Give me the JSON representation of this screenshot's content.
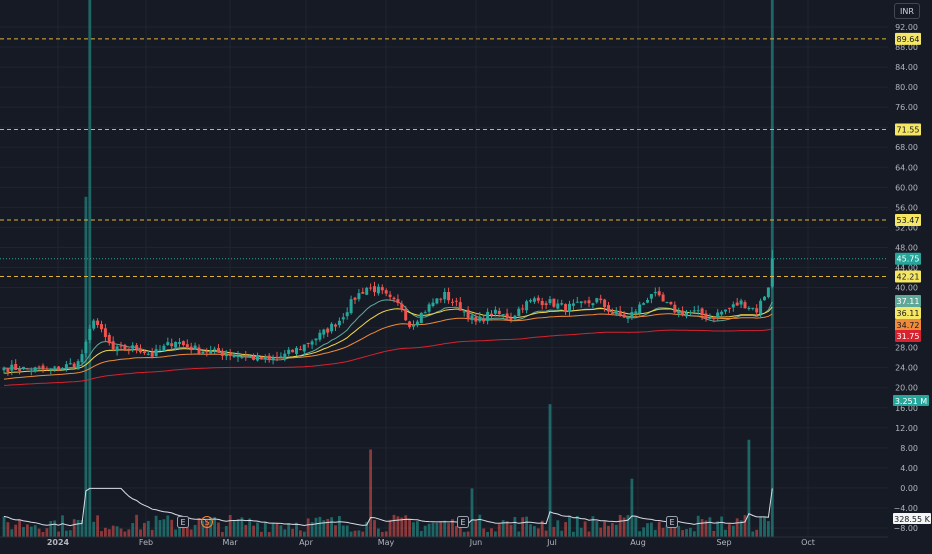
{
  "currency": "INR",
  "chart_data": {
    "type": "candlestick",
    "price_axis": {
      "ticks": [
        "92.00",
        "88.00",
        "84.00",
        "80.00",
        "76.00",
        "72.00",
        "68.00",
        "64.00",
        "60.00",
        "56.00",
        "52.00",
        "48.00",
        "44.00",
        "40.00",
        "36.00",
        "32.00",
        "28.00",
        "24.00",
        "20.00",
        "16.00",
        "12.00",
        "8.00",
        "4.00",
        "0.00",
        "−4.00",
        "−8.00"
      ],
      "tick_values": [
        92,
        88,
        84,
        80,
        76,
        72,
        68,
        64,
        60,
        56,
        52,
        48,
        44,
        40,
        36,
        32,
        28,
        24,
        20,
        16,
        12,
        8,
        4,
        0,
        -4,
        -8
      ],
      "range": [
        -8,
        92
      ]
    },
    "time_axis": {
      "labels": [
        "2024",
        "Feb",
        "Mar",
        "Apr",
        "May",
        "Jun",
        "Jul",
        "Aug",
        "Sep",
        "Oct"
      ]
    },
    "levels": [
      {
        "value": 89.64,
        "label": "89.64"
      },
      {
        "value": 71.55,
        "label": "71.55"
      },
      {
        "value": 53.47,
        "label": "53.47"
      },
      {
        "value": 42.21,
        "label": "42.21"
      }
    ],
    "last_price": {
      "value": 45.75,
      "label": "45.75",
      "color": "#26a69a"
    },
    "moving_averages": [
      {
        "last": 37.11,
        "label": "37.11",
        "color": "#5fa899"
      },
      {
        "last": 36.11,
        "label": "36.11",
        "color": "#f2d74b"
      },
      {
        "last": 34.72,
        "label": "34.72",
        "color": "#f08a38"
      },
      {
        "last": 31.75,
        "label": "31.75",
        "color": "#d6232f"
      }
    ],
    "volume": {
      "last": "3.251 M",
      "average_last": "328.55 K",
      "color_up": "#26a69a",
      "color_down": "#ef5350"
    },
    "event_markers": [
      {
        "glyph": "E",
        "date": "Feb"
      },
      {
        "glyph": "S",
        "date": "Feb"
      },
      {
        "glyph": "E",
        "date": "May"
      },
      {
        "glyph": "E",
        "date": "Aug"
      }
    ],
    "anchor_closes": [
      {
        "i": 0,
        "c": 24.0
      },
      {
        "i": 12,
        "c": 23.5
      },
      {
        "i": 19,
        "c": 25.0
      },
      {
        "i": 21,
        "c": 28.5
      },
      {
        "i": 23,
        "c": 34.0
      },
      {
        "i": 25,
        "c": 31.0
      },
      {
        "i": 28,
        "c": 27.5
      },
      {
        "i": 34,
        "c": 28.0
      },
      {
        "i": 38,
        "c": 26.5
      },
      {
        "i": 41,
        "c": 28.0
      },
      {
        "i": 44,
        "c": 29.5
      },
      {
        "i": 46,
        "c": 28.5
      },
      {
        "i": 50,
        "c": 27.5
      },
      {
        "i": 60,
        "c": 26.5
      },
      {
        "i": 68,
        "c": 25.5
      },
      {
        "i": 72,
        "c": 26.5
      },
      {
        "i": 76,
        "c": 28.0
      },
      {
        "i": 82,
        "c": 31.0
      },
      {
        "i": 86,
        "c": 33.5
      },
      {
        "i": 90,
        "c": 38.0
      },
      {
        "i": 93,
        "c": 40.0
      },
      {
        "i": 96,
        "c": 39.5
      },
      {
        "i": 99,
        "c": 37.5
      },
      {
        "i": 102,
        "c": 36.0
      },
      {
        "i": 104,
        "c": 32.5
      },
      {
        "i": 106,
        "c": 34.0
      },
      {
        "i": 110,
        "c": 37.0
      },
      {
        "i": 113,
        "c": 38.5
      },
      {
        "i": 117,
        "c": 36.0
      },
      {
        "i": 121,
        "c": 33.0
      },
      {
        "i": 125,
        "c": 35.0
      },
      {
        "i": 130,
        "c": 34.0
      },
      {
        "i": 133,
        "c": 36.5
      },
      {
        "i": 136,
        "c": 37.5
      },
      {
        "i": 140,
        "c": 37.0
      },
      {
        "i": 144,
        "c": 36.0
      },
      {
        "i": 148,
        "c": 36.5
      },
      {
        "i": 152,
        "c": 37.5
      },
      {
        "i": 156,
        "c": 35.0
      },
      {
        "i": 160,
        "c": 34.0
      },
      {
        "i": 164,
        "c": 37.0
      },
      {
        "i": 166,
        "c": 39.0
      },
      {
        "i": 169,
        "c": 37.0
      },
      {
        "i": 173,
        "c": 35.0
      },
      {
        "i": 177,
        "c": 35.0
      },
      {
        "i": 181,
        "c": 34.0
      },
      {
        "i": 185,
        "c": 35.5
      },
      {
        "i": 189,
        "c": 37.0
      },
      {
        "i": 193,
        "c": 35.5
      },
      {
        "i": 196,
        "c": 40.0
      },
      {
        "i": 197,
        "c": 45.75
      }
    ]
  }
}
